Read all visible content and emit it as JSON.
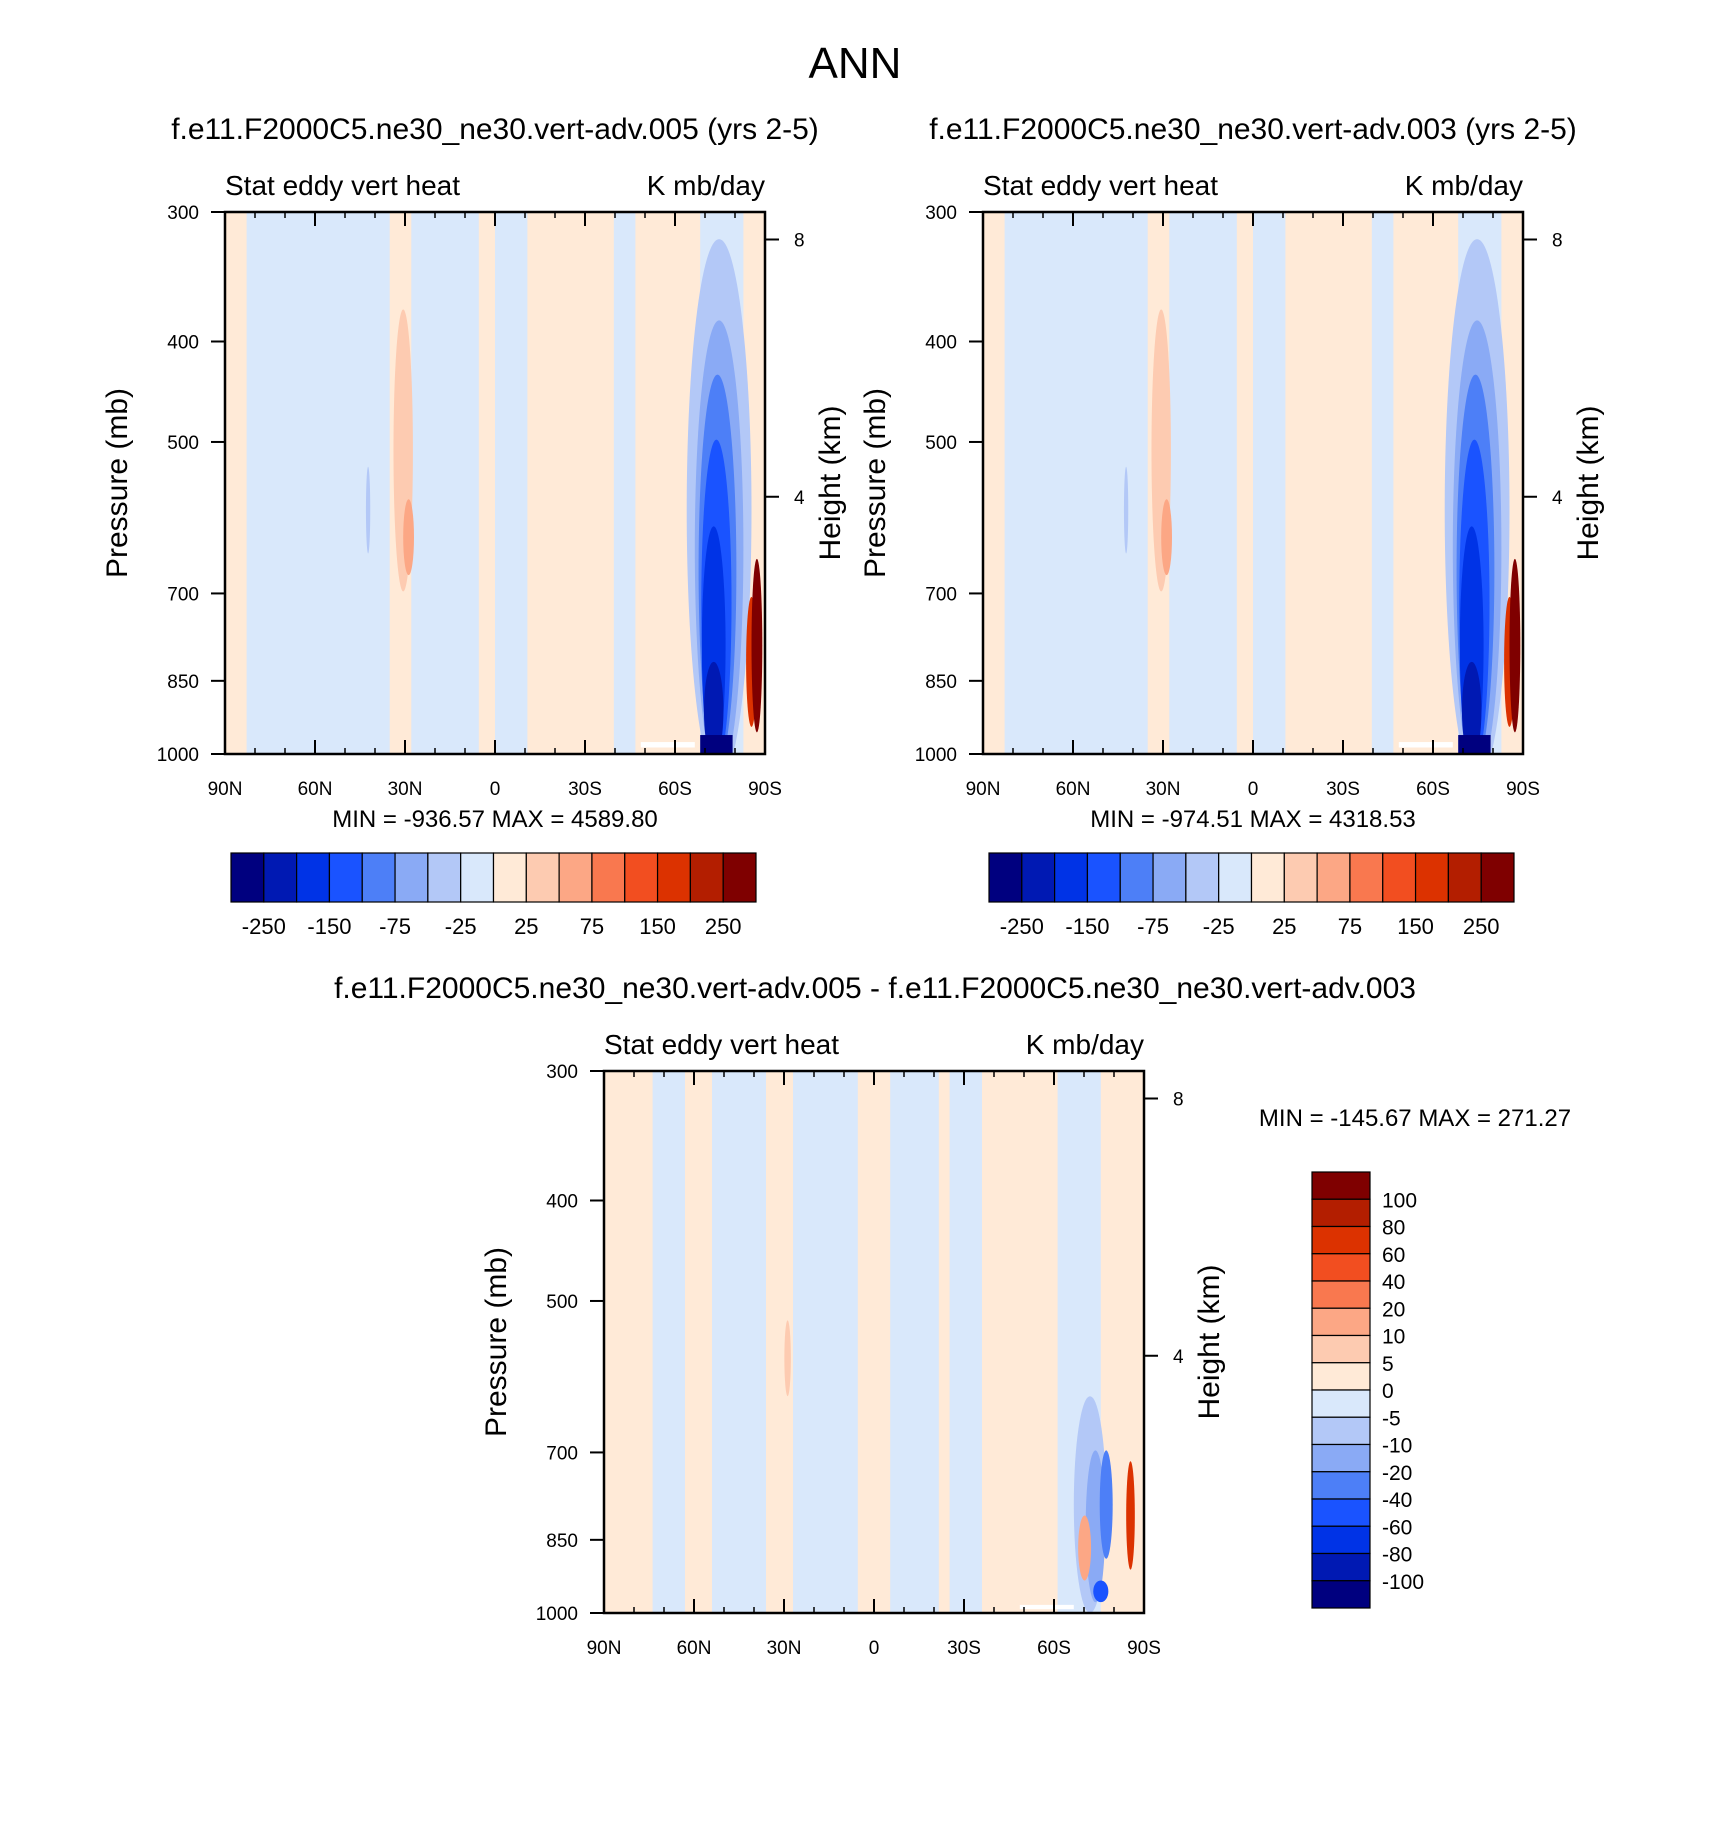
{
  "page_title": "ANN",
  "chart_data": [
    {
      "type": "heatmap",
      "title": "f.e11.F2000C5.ne30_ne30.vert-adv.005 (yrs 2-5)",
      "left_subtitle": "Stat eddy vert heat",
      "right_subtitle": "K mb/day",
      "ylabel": "Pressure (mb)",
      "ylabel_right": "Height (km)",
      "x_ticks": [
        "90N",
        "60N",
        "30N",
        "0",
        "30S",
        "60S",
        "90S"
      ],
      "y_ticks": [
        "300",
        "400",
        "500",
        "700",
        "850",
        "1000"
      ],
      "y_right_ticks": [
        "8",
        "4"
      ],
      "min_max_text": "MIN = -936.57   MAX = 4589.80",
      "colorbar_labels": [
        "-250",
        "-150",
        "-75",
        "-25",
        "25",
        "75",
        "150",
        "250"
      ]
    },
    {
      "type": "heatmap",
      "title": "f.e11.F2000C5.ne30_ne30.vert-adv.003 (yrs 2-5)",
      "left_subtitle": "Stat eddy vert heat",
      "right_subtitle": "K mb/day",
      "ylabel": "Pressure (mb)",
      "ylabel_right": "Height (km)",
      "x_ticks": [
        "90N",
        "60N",
        "30N",
        "0",
        "30S",
        "60S",
        "90S"
      ],
      "y_ticks": [
        "300",
        "400",
        "500",
        "700",
        "850",
        "1000"
      ],
      "y_right_ticks": [
        "8",
        "4"
      ],
      "min_max_text": "MIN = -974.51   MAX = 4318.53",
      "colorbar_labels": [
        "-250",
        "-150",
        "-75",
        "-25",
        "25",
        "75",
        "150",
        "250"
      ]
    },
    {
      "type": "heatmap",
      "title": "f.e11.F2000C5.ne30_ne30.vert-adv.005 - f.e11.F2000C5.ne30_ne30.vert-adv.003",
      "left_subtitle": "Stat eddy vert heat",
      "right_subtitle": "K mb/day",
      "ylabel": "Pressure (mb)",
      "ylabel_right": "Height (km)",
      "x_ticks": [
        "90N",
        "60N",
        "30N",
        "0",
        "30S",
        "60S",
        "90S"
      ],
      "y_ticks": [
        "300",
        "400",
        "500",
        "700",
        "850",
        "1000"
      ],
      "y_right_ticks": [
        "8",
        "4"
      ],
      "min_max_text": "MIN = -145.67   MAX = 271.27",
      "colorbar_labels": [
        "100",
        "80",
        "60",
        "40",
        "20",
        "10",
        "5",
        "0",
        "-5",
        "-10",
        "-20",
        "-40",
        "-60",
        "-80",
        "-100"
      ]
    }
  ],
  "colors": {
    "abs_scale": [
      "#00007f",
      "#0019b3",
      "#0033e6",
      "#1a53ff",
      "#4d7ff7",
      "#8aaaf5",
      "#b3c8f7",
      "#d9e8fb",
      "#ffead7",
      "#fdcbb1",
      "#fca785",
      "#f9784f",
      "#f24e20",
      "#dc3200",
      "#b31e00",
      "#7f0000"
    ],
    "diff_scale": [
      "#7f0000",
      "#b31e00",
      "#dc3200",
      "#f24e20",
      "#f9784f",
      "#fca785",
      "#fdcbb1",
      "#ffead7",
      "#d9e8fb",
      "#b3c8f7",
      "#8aaaf5",
      "#4d7ff7",
      "#1a53ff",
      "#0033e6",
      "#0019b3",
      "#00007f"
    ]
  }
}
